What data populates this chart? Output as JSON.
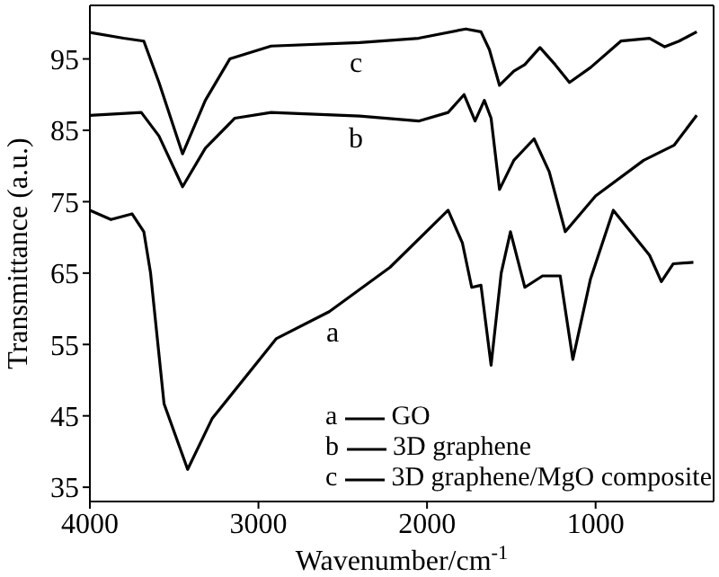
{
  "chart_data": {
    "type": "line",
    "xlabel": "Wavenumber/cm$^{-1}$",
    "ylabel": "Transmittance (a.u.)",
    "xlim": [
      4000,
      300
    ],
    "xticks": [
      4000,
      3000,
      2000,
      1000
    ],
    "ylim": [
      33,
      102.5
    ],
    "yticks": [
      35,
      45,
      55,
      65,
      75,
      85,
      95
    ],
    "legend": "bottom right",
    "annotations": [
      "a",
      "b",
      "c",
      "a",
      "b",
      "c"
    ],
    "series": [
      {
        "name": "GO",
        "color": "#000000",
        "x": [
          4000,
          3875,
          3750,
          3680,
          3640,
          3560,
          3420,
          3275,
          2895,
          2580,
          2220,
          1875,
          1790,
          1735,
          1680,
          1620,
          1560,
          1505,
          1420,
          1315,
          1210,
          1135,
          1030,
          895,
          680,
          610,
          540,
          420
        ],
        "values": [
          73.8,
          72.5,
          73.3,
          70.8,
          65,
          46.7,
          37.5,
          44.6,
          55.8,
          59.6,
          65.8,
          73.8,
          69.2,
          63,
          63.3,
          52.1,
          65,
          70.8,
          63,
          64.6,
          64.6,
          52.9,
          64.2,
          73.8,
          67.5,
          63.8,
          66.3,
          66.5
        ]
      },
      {
        "name": "3D graphene",
        "color": "#000000",
        "x": [
          4000,
          3695,
          3590,
          3450,
          3315,
          3140,
          2925,
          2400,
          2050,
          1875,
          1780,
          1715,
          1660,
          1620,
          1570,
          1485,
          1365,
          1275,
          1180,
          1000,
          715,
          535,
          400
        ],
        "values": [
          87.1,
          87.5,
          84.2,
          77.1,
          82.5,
          86.7,
          87.5,
          87,
          86.3,
          87.5,
          90,
          86.3,
          89.2,
          86.7,
          76.7,
          80.8,
          83.8,
          79.2,
          70.8,
          75.8,
          80.8,
          82.9,
          87.1
        ]
      },
      {
        "name": "3D graphene/MgO composite",
        "color": "#000000",
        "x": [
          4000,
          3800,
          3680,
          3590,
          3450,
          3315,
          3170,
          2925,
          2400,
          2050,
          1770,
          1680,
          1630,
          1570,
          1485,
          1420,
          1330,
          1240,
          1155,
          1030,
          850,
          680,
          590,
          505,
          400
        ],
        "values": [
          98.7,
          97.9,
          97.5,
          91.7,
          81.7,
          89.2,
          95,
          96.8,
          97.3,
          97.9,
          99.2,
          98.8,
          96.3,
          91.3,
          93.3,
          94.2,
          96.6,
          94.2,
          91.7,
          93.8,
          97.5,
          97.9,
          96.7,
          97.5,
          98.8
        ]
      }
    ]
  }
}
